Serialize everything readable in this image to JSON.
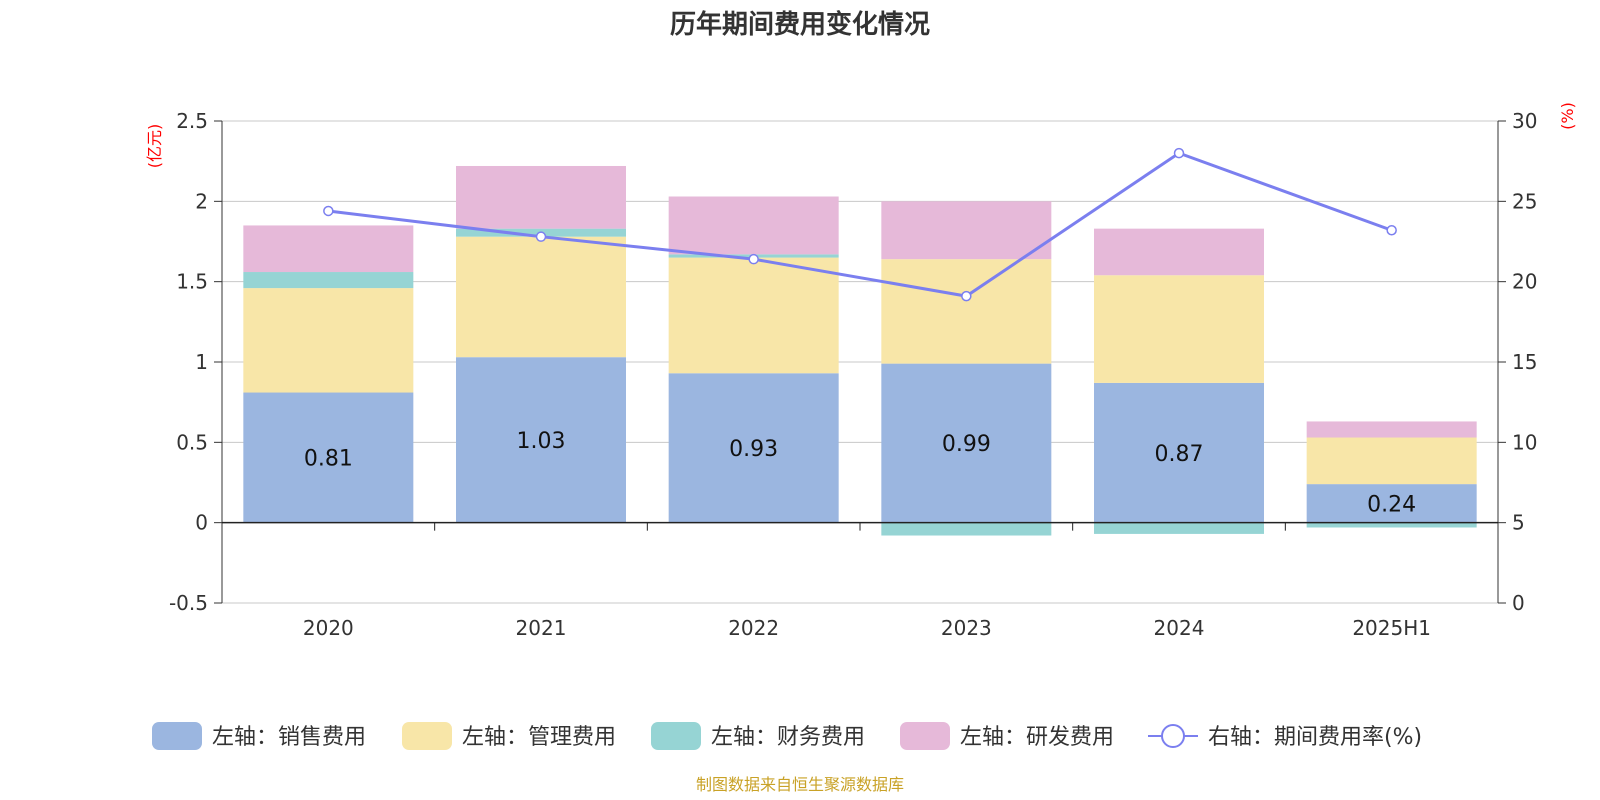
{
  "chart_data": {
    "type": "bar",
    "title": "历年期间费用变化情况",
    "categories": [
      "2020",
      "2021",
      "2022",
      "2023",
      "2024",
      "2025H1"
    ],
    "left_axis": {
      "unit": "(亿元)",
      "ylim": [
        -0.5,
        2.5
      ],
      "ticks": [
        2.5,
        2,
        1.5,
        1,
        0.5,
        0,
        -0.5
      ],
      "tick_labels": [
        "2.5",
        "2",
        "1.5",
        "1",
        "0.5",
        "0",
        "-0.5"
      ]
    },
    "right_axis": {
      "unit": "(%)",
      "ylim": [
        0,
        30
      ],
      "ticks": [
        30,
        25,
        20,
        15,
        10,
        5,
        0
      ],
      "tick_labels": [
        "30",
        "25",
        "20",
        "15",
        "10",
        "5",
        "0"
      ]
    },
    "series": [
      {
        "name": "左轴：销售费用",
        "axis": "left",
        "type": "bar",
        "color": "#9bb6e0",
        "values": [
          0.81,
          1.03,
          0.93,
          0.99,
          0.87,
          0.24
        ],
        "labels": [
          "0.81",
          "1.03",
          "0.93",
          "0.99",
          "0.87",
          "0.24"
        ]
      },
      {
        "name": "左轴：管理费用",
        "axis": "left",
        "type": "bar",
        "color": "#f8e6a8",
        "values": [
          0.65,
          0.75,
          0.72,
          0.65,
          0.67,
          0.29
        ]
      },
      {
        "name": "左轴：财务费用",
        "axis": "left",
        "type": "bar",
        "color": "#96d4d4",
        "values": [
          0.1,
          0.05,
          0.02,
          -0.08,
          -0.07,
          -0.03
        ]
      },
      {
        "name": "左轴：研发费用",
        "axis": "left",
        "type": "bar",
        "color": "#e6b9d9",
        "values": [
          0.29,
          0.39,
          0.36,
          0.36,
          0.29,
          0.1
        ]
      },
      {
        "name": "右轴：期间费用率(%)",
        "axis": "right",
        "type": "line",
        "color": "#7b7fef",
        "values": [
          24.4,
          22.8,
          21.4,
          19.1,
          28.0,
          23.2
        ]
      }
    ],
    "grid": true,
    "legend_position": "bottom"
  },
  "source_note": "制图数据来自恒生聚源数据库"
}
